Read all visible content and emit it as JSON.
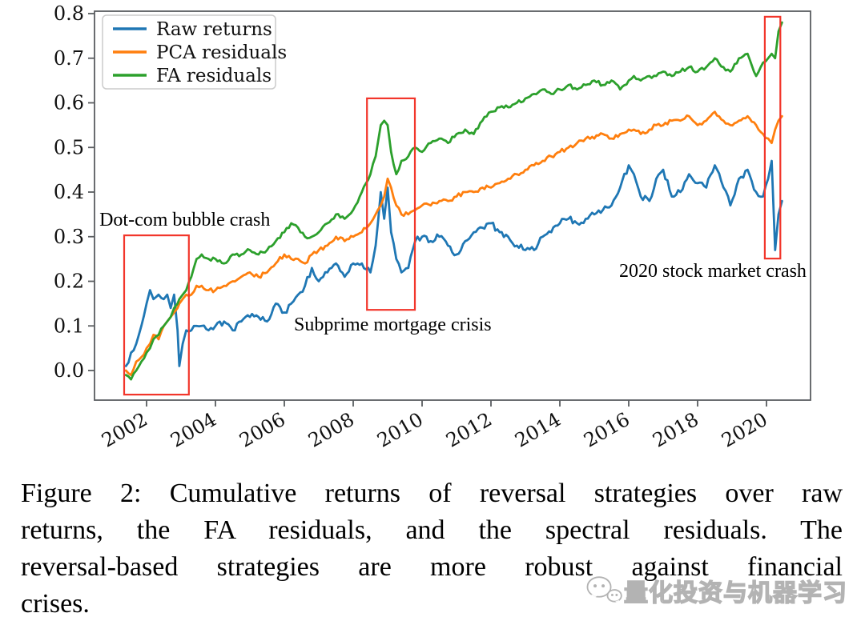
{
  "caption": {
    "lines": [
      "Figure 2: Cumulative returns of reversal strategies over raw",
      "returns, the FA residuals, and the spectral residuals. The",
      "reversal-based strategies are more robust against financial",
      "crises."
    ],
    "full": "Figure 2: Cumulative returns of reversal strategies over raw returns, the FA residuals, and the spectral residuals. The reversal-based strategies are more robust against financial crises."
  },
  "watermark": {
    "text": "量化投资与机器学习",
    "icon": "chat-bubbles-icon"
  },
  "chart_data": {
    "type": "line",
    "title": "",
    "xlabel": "",
    "ylabel": "",
    "xlim": [
      2000.49,
      2021.28
    ],
    "ylim": [
      -0.066,
      0.805
    ],
    "xticks": [
      2002,
      2004,
      2006,
      2008,
      2010,
      2012,
      2014,
      2016,
      2018,
      2020
    ],
    "yticks": [
      0.0,
      0.1,
      0.2,
      0.3,
      0.4,
      0.5,
      0.6,
      0.7,
      0.8
    ],
    "grid": false,
    "legend": {
      "position": "upper left",
      "entries": [
        "Raw returns",
        "PCA residuals",
        "FA residuals"
      ]
    },
    "colors": {
      "raw": "#1f77b4",
      "pca": "#ff7f0e",
      "fa": "#2ca02c",
      "crisis_box": "#f2362b",
      "axis": "#5a5d60",
      "tick_label": "#111111"
    },
    "x": [
      2001.4,
      2001.55,
      2001.7,
      2001.85,
      2002.0,
      2002.1,
      2002.2,
      2002.35,
      2002.5,
      2002.6,
      2002.7,
      2002.8,
      2002.9,
      2002.95,
      2003.05,
      2003.15,
      2003.3,
      2003.45,
      2003.6,
      2003.8,
      2004.0,
      2004.25,
      2004.5,
      2004.75,
      2005.0,
      2005.25,
      2005.5,
      2005.75,
      2006.0,
      2006.2,
      2006.4,
      2006.6,
      2006.8,
      2007.0,
      2007.25,
      2007.5,
      2007.75,
      2008.0,
      2008.25,
      2008.5,
      2008.65,
      2008.8,
      2008.9,
      2009.0,
      2009.1,
      2009.25,
      2009.4,
      2009.6,
      2009.8,
      2010.0,
      2010.25,
      2010.5,
      2010.75,
      2011.0,
      2011.25,
      2011.5,
      2011.75,
      2012.0,
      2012.25,
      2012.5,
      2012.75,
      2013.0,
      2013.25,
      2013.5,
      2013.75,
      2014.0,
      2014.25,
      2014.5,
      2014.75,
      2015.0,
      2015.25,
      2015.5,
      2015.75,
      2016.0,
      2016.15,
      2016.35,
      2016.6,
      2016.8,
      2017.0,
      2017.25,
      2017.5,
      2017.75,
      2018.0,
      2018.25,
      2018.5,
      2018.75,
      2018.95,
      2019.2,
      2019.45,
      2019.7,
      2019.9,
      2020.05,
      2020.15,
      2020.25,
      2020.35,
      2020.45
    ],
    "series": [
      {
        "id": "raw-returns",
        "name": "Raw returns",
        "color": "#1f77b4",
        "values": [
          0.01,
          0.04,
          0.06,
          0.1,
          0.15,
          0.18,
          0.16,
          0.17,
          0.16,
          0.17,
          0.14,
          0.17,
          0.09,
          0.01,
          0.06,
          0.09,
          0.09,
          0.1,
          0.1,
          0.09,
          0.1,
          0.11,
          0.09,
          0.11,
          0.12,
          0.12,
          0.11,
          0.15,
          0.13,
          0.15,
          0.17,
          0.19,
          0.23,
          0.2,
          0.22,
          0.24,
          0.21,
          0.24,
          0.24,
          0.22,
          0.28,
          0.4,
          0.34,
          0.41,
          0.31,
          0.25,
          0.22,
          0.23,
          0.29,
          0.3,
          0.29,
          0.3,
          0.28,
          0.26,
          0.29,
          0.31,
          0.32,
          0.33,
          0.31,
          0.3,
          0.28,
          0.27,
          0.27,
          0.3,
          0.31,
          0.33,
          0.34,
          0.33,
          0.34,
          0.35,
          0.36,
          0.37,
          0.41,
          0.46,
          0.44,
          0.39,
          0.38,
          0.43,
          0.45,
          0.39,
          0.4,
          0.44,
          0.42,
          0.41,
          0.46,
          0.41,
          0.37,
          0.43,
          0.45,
          0.4,
          0.39,
          0.43,
          0.47,
          0.27,
          0.35,
          0.38
        ]
      },
      {
        "id": "pca-residuals",
        "name": "PCA residuals",
        "color": "#ff7f0e",
        "values": [
          0.0,
          -0.01,
          0.02,
          0.03,
          0.05,
          0.06,
          0.08,
          0.07,
          0.1,
          0.11,
          0.12,
          0.13,
          0.14,
          0.15,
          0.16,
          0.17,
          0.17,
          0.19,
          0.19,
          0.18,
          0.18,
          0.19,
          0.2,
          0.21,
          0.22,
          0.21,
          0.22,
          0.24,
          0.26,
          0.25,
          0.25,
          0.24,
          0.26,
          0.27,
          0.28,
          0.3,
          0.29,
          0.3,
          0.31,
          0.33,
          0.35,
          0.37,
          0.39,
          0.43,
          0.41,
          0.37,
          0.35,
          0.35,
          0.36,
          0.37,
          0.37,
          0.38,
          0.38,
          0.39,
          0.4,
          0.4,
          0.41,
          0.41,
          0.42,
          0.43,
          0.44,
          0.45,
          0.46,
          0.47,
          0.48,
          0.49,
          0.5,
          0.51,
          0.52,
          0.52,
          0.53,
          0.52,
          0.53,
          0.54,
          0.54,
          0.53,
          0.54,
          0.55,
          0.55,
          0.56,
          0.56,
          0.57,
          0.55,
          0.56,
          0.58,
          0.56,
          0.55,
          0.56,
          0.57,
          0.55,
          0.53,
          0.52,
          0.51,
          0.54,
          0.56,
          0.57
        ]
      },
      {
        "id": "fa-residuals",
        "name": "FA residuals",
        "color": "#2ca02c",
        "values": [
          -0.01,
          -0.02,
          0.0,
          0.02,
          0.04,
          0.05,
          0.07,
          0.08,
          0.1,
          0.11,
          0.12,
          0.14,
          0.15,
          0.16,
          0.17,
          0.18,
          0.21,
          0.25,
          0.26,
          0.25,
          0.25,
          0.24,
          0.26,
          0.26,
          0.27,
          0.26,
          0.27,
          0.29,
          0.31,
          0.33,
          0.32,
          0.3,
          0.3,
          0.31,
          0.33,
          0.35,
          0.34,
          0.36,
          0.4,
          0.44,
          0.48,
          0.55,
          0.56,
          0.55,
          0.49,
          0.44,
          0.47,
          0.48,
          0.5,
          0.49,
          0.51,
          0.52,
          0.51,
          0.53,
          0.54,
          0.53,
          0.56,
          0.58,
          0.59,
          0.59,
          0.6,
          0.61,
          0.62,
          0.63,
          0.62,
          0.63,
          0.64,
          0.63,
          0.64,
          0.65,
          0.64,
          0.65,
          0.63,
          0.65,
          0.66,
          0.65,
          0.66,
          0.66,
          0.67,
          0.66,
          0.67,
          0.68,
          0.67,
          0.68,
          0.7,
          0.68,
          0.67,
          0.7,
          0.71,
          0.66,
          0.69,
          0.7,
          0.71,
          0.7,
          0.76,
          0.78
        ]
      }
    ],
    "annotations": [
      {
        "id": "dotcom",
        "text": "Dot-com bubble crash",
        "x": 2000.63,
        "y": 0.325
      },
      {
        "id": "subprime",
        "text": "Subprime mortgage crisis",
        "x": 2006.28,
        "y": 0.09
      },
      {
        "id": "covid",
        "text": "2020 stock market crash",
        "x": 2015.72,
        "y": 0.21
      }
    ],
    "crisis_boxes": [
      {
        "id": "dotcom-box",
        "x0": 2001.35,
        "x1": 2003.23,
        "y0": -0.054,
        "y1": 0.303
      },
      {
        "id": "subprime-box",
        "x0": 2008.4,
        "x1": 2009.79,
        "y0": 0.136,
        "y1": 0.61
      },
      {
        "id": "covid-box",
        "x0": 2019.95,
        "x1": 2020.4,
        "y0": 0.251,
        "y1": 0.793
      }
    ]
  }
}
